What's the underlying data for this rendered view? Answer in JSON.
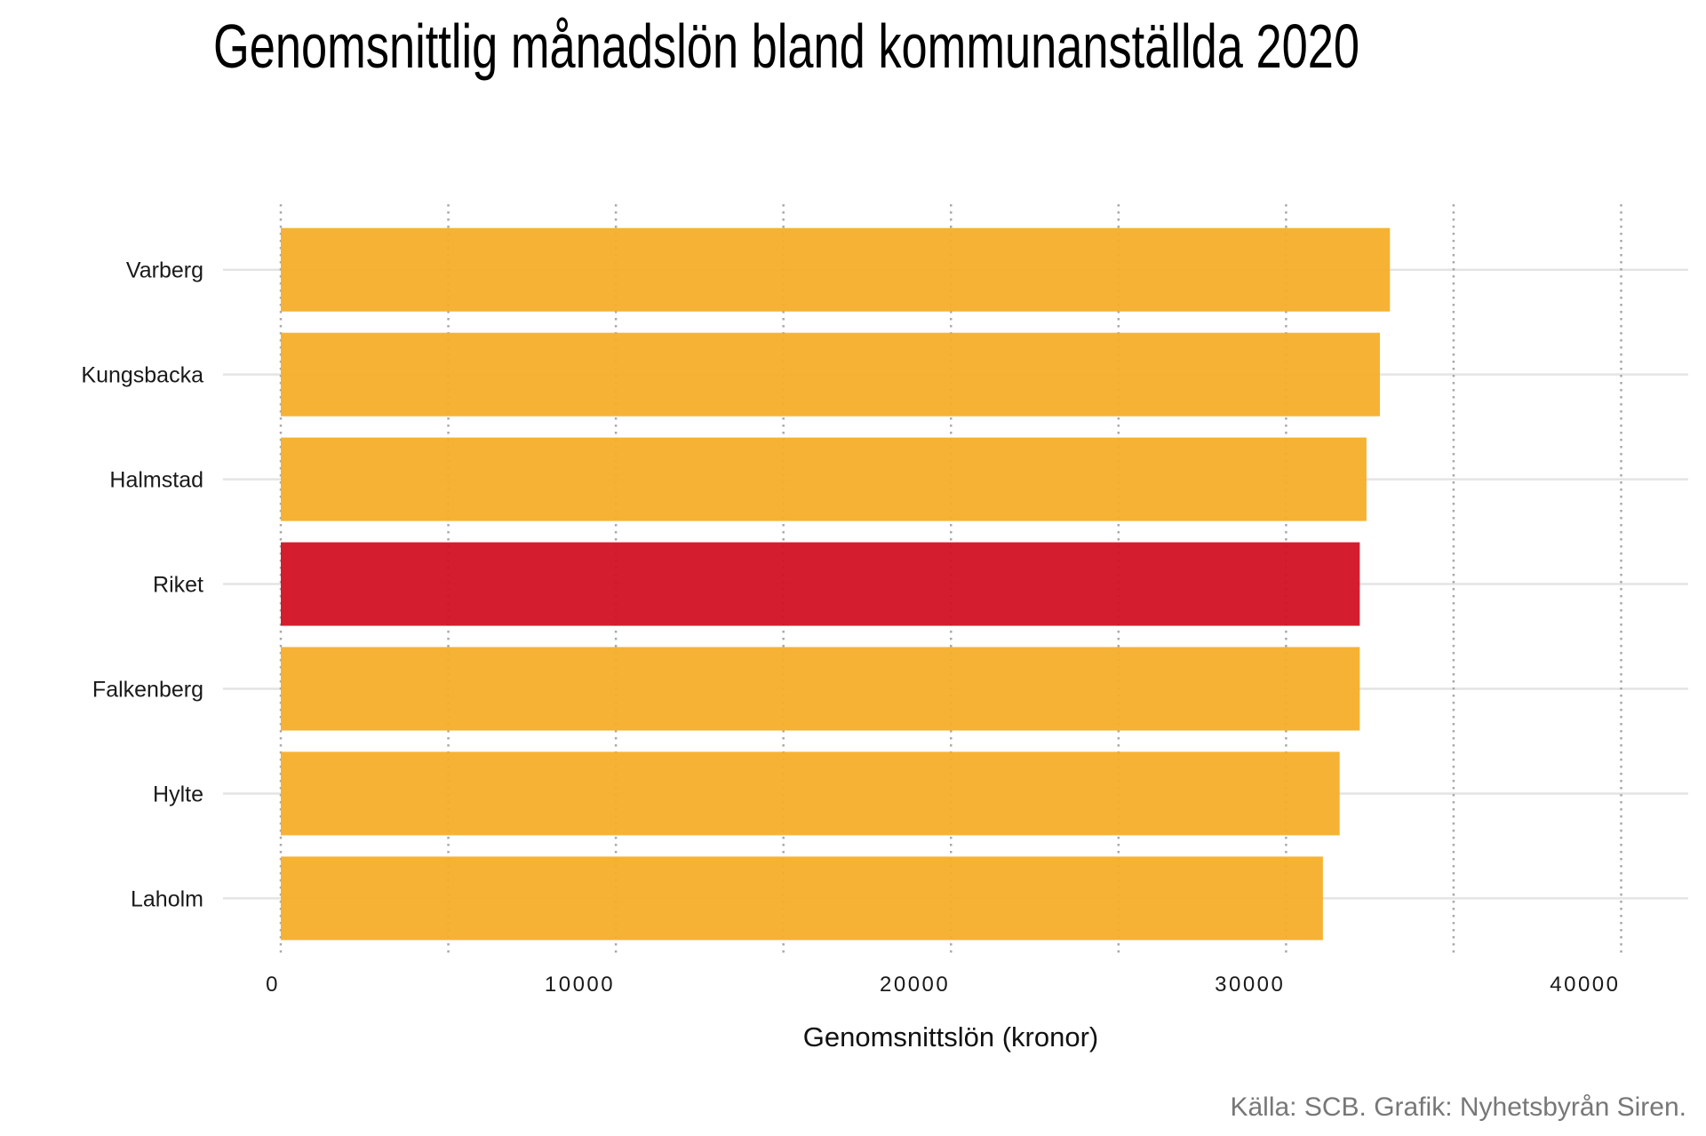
{
  "chart_data": {
    "type": "bar",
    "orientation": "horizontal",
    "title": "Genomsnittlig månadslön bland kommunanställda 2020",
    "xlabel": "Genomsnittslön (kronor)",
    "ylabel": "",
    "caption": "Källa: SCB. Grafik: Nyhetsbyrån Siren.",
    "categories": [
      "Varberg",
      "Kungsbacka",
      "Halmstad",
      "Riket",
      "Falkenberg",
      "Hylte",
      "Laholm"
    ],
    "values": [
      33100,
      32800,
      32400,
      32200,
      32200,
      31600,
      31100
    ],
    "highlight": "Riket",
    "xlim": [
      0,
      40000
    ],
    "xticks": [
      0,
      10000,
      20000,
      30000,
      40000
    ],
    "xtick_labels": [
      "0",
      "10000",
      "20000",
      "30000",
      "40000"
    ],
    "minor_xticks": [
      5000,
      15000,
      25000,
      35000
    ],
    "grid": {
      "x": "dotted",
      "y": "solid"
    },
    "legend": "none",
    "colors": {
      "bar": "#F5AD27",
      "highlight": "#D11022",
      "caption": "#777777"
    }
  }
}
